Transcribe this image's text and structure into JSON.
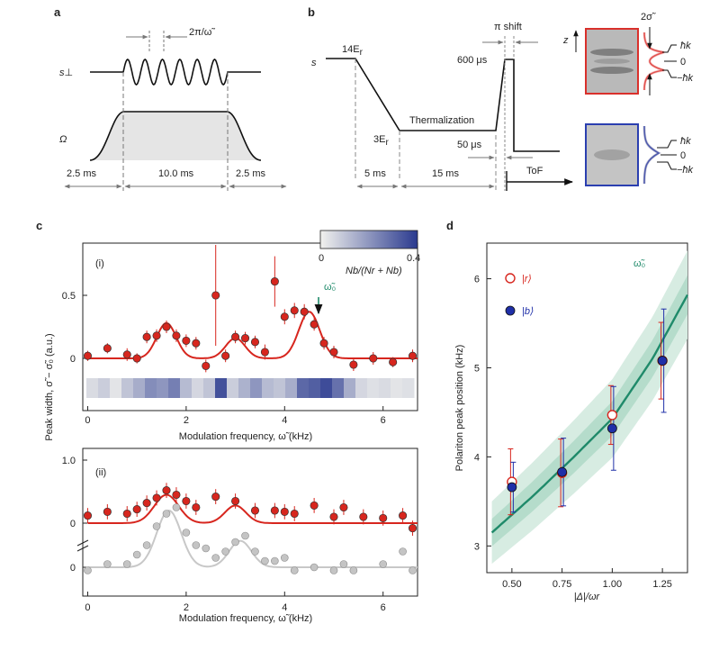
{
  "panel_letters": {
    "a": "a",
    "b": "b",
    "c": "c",
    "d": "d"
  },
  "panel_a": {
    "period_label": "2π/ω̃",
    "row1_label": "s⊥",
    "row2_label": "Ω",
    "durations": [
      "2.5 ms",
      "10.0 ms",
      "2.5 ms"
    ]
  },
  "panel_b": {
    "s_label": "s",
    "e14": "14E",
    "e3": "3E",
    "e_sub": "r",
    "thermalization": "Thermalization",
    "pi_shift": "π shift",
    "t600": "600 μs",
    "t50": "50 μs",
    "t5": "5 ms",
    "t15": "15 ms",
    "tof": "ToF",
    "z": "z",
    "two_sigma": "2σ̃",
    "hk": "ħk",
    "zero": "0",
    "mhk": "−ħk",
    "img_red_color": "#d9302b",
    "img_blue_color": "#2b3fb0"
  },
  "panel_c": {
    "ylabel": "Peak width, σ̃ − σ̃₀ (a.u.)",
    "xlabel": "Modulation frequency, ω̃ (kHz)",
    "sub_i": "(i)",
    "sub_ii": "(ii)",
    "omega0": "ω̃₀",
    "colorbar_min": "0",
    "colorbar_max": "0.4",
    "colorbar_label": "Nb/(Nr + Nb)",
    "colors": {
      "red": "#d7261e",
      "gray": "#b4b4b4",
      "cbar_hi": "#2a3a8f"
    }
  },
  "panel_d": {
    "ylabel": "Polariton peak position (kHz)",
    "xlabel": "|Δ|/ωr",
    "legend_r": "|r⟩",
    "legend_b": "|b⟩",
    "theory": "ω̃₀",
    "colors": {
      "theory": "#1f8a6a",
      "band": "#cfe8dc",
      "red": "#d7261e",
      "blue": "#1f2fa8"
    }
  },
  "chart_data": [
    {
      "type": "scatter",
      "title": "(i)",
      "xlabel": "Modulation frequency, ω̃ (kHz)",
      "ylabel": "Peak width, σ̃ − σ̃₀ (a.u.)",
      "xlim": [
        -0.1,
        6.7
      ],
      "ylim": [
        -0.07,
        0.9
      ],
      "xticks": [
        0,
        2,
        4,
        6
      ],
      "yticks": [
        0,
        0.5
      ],
      "series": [
        {
          "name": "(i)",
          "color": "#d7261e",
          "x": [
            0,
            0.4,
            0.8,
            1.0,
            1.2,
            1.4,
            1.6,
            1.8,
            2.0,
            2.2,
            2.4,
            2.6,
            2.8,
            3.0,
            3.2,
            3.4,
            3.6,
            3.8,
            4.0,
            4.2,
            4.4,
            4.6,
            4.8,
            5.0,
            5.4,
            5.8,
            6.2,
            6.6
          ],
          "y": [
            0.02,
            0.08,
            0.03,
            0.0,
            0.17,
            0.18,
            0.25,
            0.18,
            0.14,
            0.12,
            -0.06,
            0.5,
            0.02,
            0.17,
            0.16,
            0.13,
            0.05,
            0.61,
            0.33,
            0.38,
            0.37,
            0.27,
            0.12,
            0.05,
            -0.05,
            0.0,
            -0.03,
            0.02
          ],
          "err": [
            0.04,
            0.04,
            0.05,
            0.04,
            0.05,
            0.05,
            0.05,
            0.05,
            0.05,
            0.05,
            0.05,
            0.4,
            0.05,
            0.05,
            0.05,
            0.05,
            0.06,
            0.2,
            0.06,
            0.06,
            0.06,
            0.05,
            0.05,
            0.05,
            0.05,
            0.05,
            0.04,
            0.05
          ],
          "fraction_strip": [
            0.05,
            0.08,
            0.03,
            0.1,
            0.15,
            0.22,
            0.2,
            0.25,
            0.12,
            0.06,
            0.1,
            0.35,
            0.08,
            0.14,
            0.2,
            0.12,
            0.1,
            0.15,
            0.3,
            0.32,
            0.36,
            0.28,
            0.15,
            0.06,
            0.04,
            0.05,
            0.03,
            0.04
          ]
        },
        {
          "name": "fit",
          "type": "line",
          "color": "#d7261e",
          "x": [
            0,
            6.7
          ],
          "peaks": [
            [
              1.6,
              0.28,
              0.28
            ],
            [
              3.0,
              0.16,
              0.28
            ],
            [
              4.5,
              0.37,
              0.3
            ]
          ]
        }
      ]
    },
    {
      "type": "scatter",
      "title": "(ii)",
      "xlabel": "Modulation frequency, ω̃ (kHz)",
      "xlim": [
        -0.1,
        6.7
      ],
      "yticks": [
        0,
        1.0
      ],
      "series": [
        {
          "name": "red",
          "color": "#d7261e",
          "x": [
            0,
            0.4,
            0.8,
            1.0,
            1.2,
            1.4,
            1.6,
            1.8,
            2.0,
            2.2,
            2.6,
            3.0,
            3.4,
            3.8,
            4.0,
            4.2,
            4.6,
            5.0,
            5.2,
            5.6,
            6.0,
            6.4,
            6.6
          ],
          "y": [
            0.12,
            0.18,
            0.15,
            0.22,
            0.32,
            0.4,
            0.52,
            0.45,
            0.35,
            0.25,
            0.42,
            0.35,
            0.2,
            0.2,
            0.18,
            0.15,
            0.28,
            0.1,
            0.25,
            0.1,
            0.08,
            0.12,
            -0.08
          ]
        },
        {
          "name": "gray",
          "color": "#b4b4b4",
          "x": [
            0,
            0.4,
            0.8,
            1.0,
            1.2,
            1.4,
            1.6,
            1.8,
            2.0,
            2.2,
            2.4,
            2.6,
            2.8,
            3.0,
            3.2,
            3.4,
            3.6,
            3.8,
            4.0,
            4.2,
            4.6,
            5.0,
            5.2,
            5.4,
            6.0,
            6.4,
            6.6
          ],
          "y": [
            -0.05,
            0.05,
            0.05,
            0.2,
            0.35,
            0.65,
            0.85,
            0.95,
            0.55,
            0.35,
            0.3,
            0.15,
            0.25,
            0.4,
            0.5,
            0.25,
            0.1,
            0.1,
            0.15,
            -0.05,
            0.0,
            -0.05,
            0.05,
            -0.05,
            0.05,
            0.25,
            -0.05
          ]
        }
      ]
    },
    {
      "type": "scatter",
      "xlabel": "|Δ|/ωr",
      "ylabel": "Polariton peak position (kHz)",
      "xlim": [
        0.375,
        1.375
      ],
      "ylim": [
        2.7,
        6.4
      ],
      "xticks": [
        0.5,
        0.75,
        1.0,
        1.25
      ],
      "yticks": [
        3,
        4,
        5,
        6
      ],
      "series": [
        {
          "name": "|r⟩",
          "color": "#d7261e",
          "x": [
            0.5,
            0.75,
            1.0,
            1.25
          ],
          "y": [
            3.72,
            3.82,
            4.47,
            5.08
          ],
          "err": [
            0.37,
            0.38,
            0.33,
            0.43
          ]
        },
        {
          "name": "|b⟩",
          "color": "#1f2fa8",
          "x": [
            0.5,
            0.75,
            1.0,
            1.25
          ],
          "y": [
            3.66,
            3.83,
            4.32,
            5.08
          ],
          "err": [
            0.28,
            0.38,
            0.47,
            0.58
          ]
        },
        {
          "name": "ω̃₀",
          "type": "line",
          "color": "#1f8a6a",
          "x": [
            0.4,
            0.6,
            0.8,
            1.0,
            1.2,
            1.375
          ],
          "y": [
            3.15,
            3.55,
            3.98,
            4.43,
            5.1,
            5.82
          ]
        }
      ]
    }
  ]
}
